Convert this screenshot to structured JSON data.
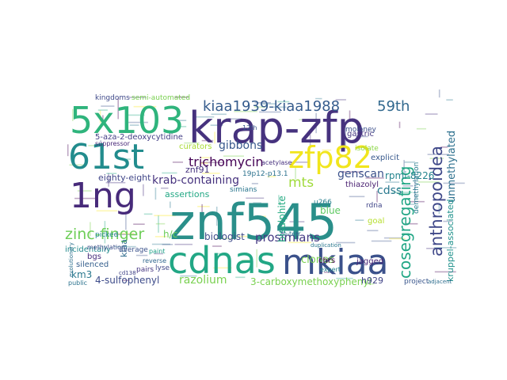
{
  "words": [
    {
      "text": "znf545",
      "color": "#2a8f8a"
    },
    {
      "text": "krap-zfp",
      "color": "#46327e"
    },
    {
      "text": "cdnas",
      "color": "#22a785"
    },
    {
      "text": "mkiaa",
      "color": "#3b518b"
    },
    {
      "text": "5x103",
      "color": "#2fb47c"
    },
    {
      "text": "61st",
      "color": "#228c8d"
    },
    {
      "text": "1ng",
      "color": "#472a7a"
    },
    {
      "text": "zfp82",
      "color": "#f1e51d"
    },
    {
      "text": "cosegregating",
      "color": "#21a685"
    },
    {
      "text": "anthropoidea",
      "color": "#3f4889"
    },
    {
      "text": "kiaa1939-kiaa1988",
      "color": "#365c8d"
    },
    {
      "text": "trichomycin",
      "color": "#440154"
    },
    {
      "text": "zinc-finger",
      "color": "#6ece58"
    },
    {
      "text": "59th",
      "color": "#31688e"
    },
    {
      "text": "prosimians",
      "color": "#443983"
    },
    {
      "text": "mts",
      "color": "#9fda3a"
    },
    {
      "text": "genscan",
      "color": "#3b518b"
    },
    {
      "text": "clones",
      "color": "#7ad151"
    },
    {
      "text": "razolium",
      "color": "#7ad151"
    },
    {
      "text": "unmethylated",
      "color": "#2d708e"
    },
    {
      "text": "gibbons",
      "color": "#38598c"
    },
    {
      "text": "krab-containing",
      "color": "#46327e"
    },
    {
      "text": "biologist",
      "color": "#3e4a89"
    },
    {
      "text": "cdss",
      "color": "#29788e"
    },
    {
      "text": "rpmi-8226",
      "color": "#25858e"
    },
    {
      "text": "kruppel-associated",
      "color": "#20928c"
    },
    {
      "text": "bisulphite",
      "color": "#25ab82"
    },
    {
      "text": "4-sulfophenyl",
      "color": "#3e4c8a"
    },
    {
      "text": "3-carboxymethoxyphenyl",
      "color": "#7ad151"
    },
    {
      "text": "km3",
      "color": "#2a788e"
    },
    {
      "text": "kiaa",
      "color": "#2f6c8e"
    },
    {
      "text": "assertions",
      "color": "#22a884"
    },
    {
      "text": "h929",
      "color": "#414487"
    },
    {
      "text": "jagged",
      "color": "#482475"
    },
    {
      "text": "project",
      "color": "#39568c"
    },
    {
      "text": "h/c",
      "color": "#6ccd5a"
    },
    {
      "text": "blue",
      "color": "#5ec962"
    },
    {
      "text": "znf91",
      "color": "#46337f"
    },
    {
      "text": "eighty-eight",
      "color": "#404688"
    },
    {
      "text": "5-aza-2-deoxycytidine",
      "color": "#433e85"
    },
    {
      "text": "kingdoms",
      "color": "#3e4989"
    },
    {
      "text": "semi-automated",
      "color": "#7ad151"
    },
    {
      "text": "curators",
      "color": "#a8db34"
    },
    {
      "text": "gastric",
      "color": "#453781"
    },
    {
      "text": "explicit",
      "color": "#38598c"
    },
    {
      "text": "suppressor",
      "color": "#482878"
    },
    {
      "text": "19p12-p13.1",
      "color": "#2c728e"
    },
    {
      "text": "simians",
      "color": "#2a768e"
    },
    {
      "text": "12th",
      "color": "#39568c"
    },
    {
      "text": "thiazolyl",
      "color": "#481f70"
    },
    {
      "text": "rdna",
      "color": "#404588"
    },
    {
      "text": "goal",
      "color": "#b5de2b"
    },
    {
      "text": "u266",
      "color": "#277f8e"
    },
    {
      "text": "expert",
      "color": "#26828e"
    },
    {
      "text": "incidentally",
      "color": "#238a8d"
    },
    {
      "text": "average",
      "color": "#3b528b"
    },
    {
      "text": "bgs",
      "color": "#472d7b"
    },
    {
      "text": "silenced",
      "color": "#355f8d"
    },
    {
      "text": "pairs",
      "color": "#453581"
    },
    {
      "text": "cd138",
      "color": "#404387"
    },
    {
      "text": "picked",
      "color": "#23888e"
    },
    {
      "text": "methylation",
      "color": "#3d4e8a"
    },
    {
      "text": "chrs",
      "color": "#440154"
    },
    {
      "text": "reverse",
      "color": "#31678e"
    },
    {
      "text": "lyse",
      "color": "#3f4788"
    },
    {
      "text": "paint",
      "color": "#1fa088"
    },
    {
      "text": "adjacent",
      "color": "#2e6e8e"
    },
    {
      "text": "demethylation",
      "color": "#287c8e"
    },
    {
      "text": "acetylase",
      "color": "#46307e"
    },
    {
      "text": "isolate",
      "color": "#8bd646"
    },
    {
      "text": "moloney",
      "color": "#3c508b"
    },
    {
      "text": "public",
      "color": "#2c738e"
    },
    {
      "text": "evolutionary",
      "color": "#2d718e"
    },
    {
      "text": "2h-tetr",
      "color": "#2c728e"
    },
    {
      "text": "duplication",
      "color": "#2a778e"
    }
  ]
}
